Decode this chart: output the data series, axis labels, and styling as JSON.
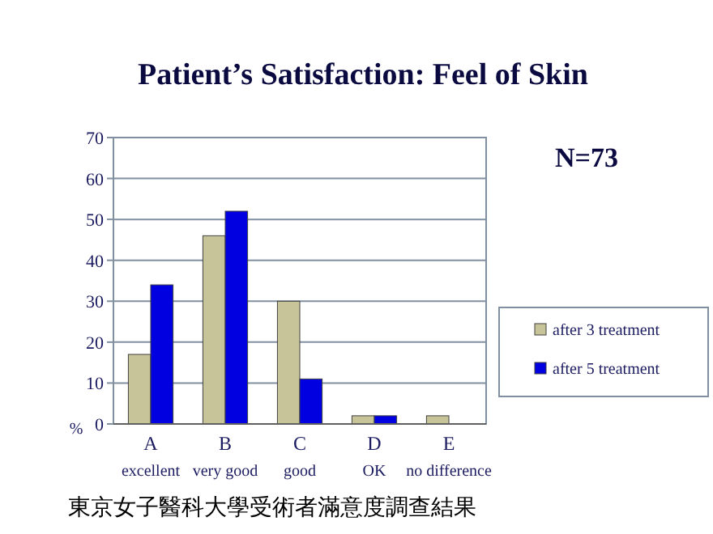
{
  "chart_data": {
    "type": "bar",
    "title": "Patient’s Satisfaction: Feel of Skin",
    "ylabel": "%",
    "categories": [
      "A\nexcellent",
      "B\nvery good",
      "C\ngood",
      "D\nOK",
      "E\nno difference"
    ],
    "series": [
      {
        "name": "after 3 treatment",
        "color": "#c8c49a",
        "values": [
          17,
          46,
          30,
          2,
          2
        ]
      },
      {
        "name": "after 5 treatment",
        "color": "#0000e0",
        "values": [
          34,
          52,
          11,
          2,
          0
        ]
      }
    ],
    "ylim": [
      0,
      70
    ],
    "yticks": [
      0,
      10,
      20,
      30,
      40,
      50,
      60,
      70
    ],
    "grid": "y",
    "legend": "right",
    "annotations": [
      "N=73",
      "東京女子醫科大學受術者滿意度調查結果"
    ]
  }
}
